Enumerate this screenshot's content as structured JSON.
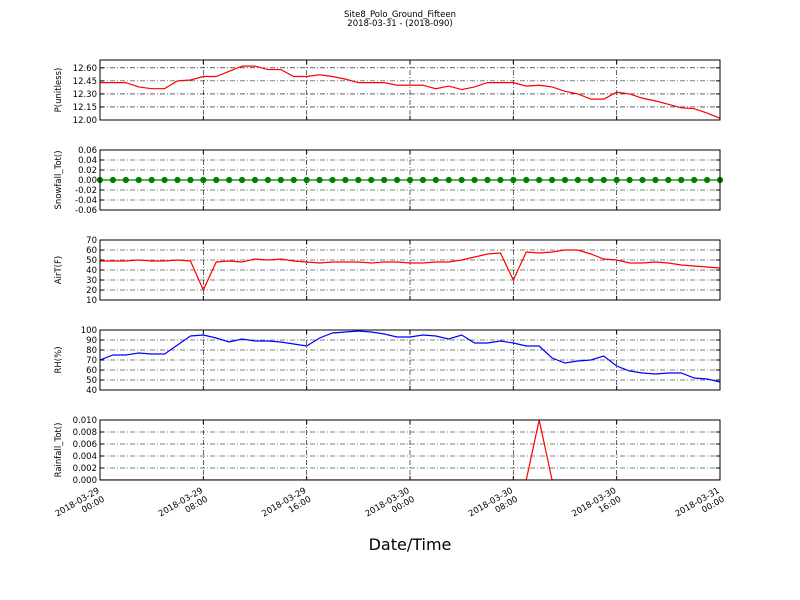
{
  "title": "Site8_Polo_Ground_Fifteen",
  "subtitle": "2018-03-31 - (2018-090)",
  "x_axis": {
    "label": "Date/Time",
    "xlim": [
      "2018-03-29 00:00",
      "2018-03-31 00:00"
    ],
    "xticks": [
      "2018-03-29 00:00",
      "2018-03-29 08:00",
      "2018-03-29 16:00",
      "2018-03-30 00:00",
      "2018-03-30 08:00",
      "2018-03-30 16:00",
      "2018-03-31 00:00"
    ],
    "grid": true,
    "x": [
      "2018-03-29 00:00",
      "2018-03-29 01:00",
      "2018-03-29 02:00",
      "2018-03-29 03:00",
      "2018-03-29 04:00",
      "2018-03-29 05:00",
      "2018-03-29 06:00",
      "2018-03-29 07:00",
      "2018-03-29 08:00",
      "2018-03-29 09:00",
      "2018-03-29 10:00",
      "2018-03-29 11:00",
      "2018-03-29 12:00",
      "2018-03-29 13:00",
      "2018-03-29 14:00",
      "2018-03-29 15:00",
      "2018-03-29 16:00",
      "2018-03-29 17:00",
      "2018-03-29 18:00",
      "2018-03-29 19:00",
      "2018-03-29 20:00",
      "2018-03-29 21:00",
      "2018-03-29 22:00",
      "2018-03-29 23:00",
      "2018-03-30 00:00",
      "2018-03-30 01:00",
      "2018-03-30 02:00",
      "2018-03-30 03:00",
      "2018-03-30 04:00",
      "2018-03-30 05:00",
      "2018-03-30 06:00",
      "2018-03-30 07:00",
      "2018-03-30 08:00",
      "2018-03-30 09:00",
      "2018-03-30 10:00",
      "2018-03-30 11:00",
      "2018-03-30 12:00",
      "2018-03-30 13:00",
      "2018-03-30 14:00",
      "2018-03-30 15:00",
      "2018-03-30 16:00",
      "2018-03-30 17:00",
      "2018-03-30 18:00",
      "2018-03-30 19:00",
      "2018-03-30 20:00",
      "2018-03-30 21:00",
      "2018-03-30 22:00",
      "2018-03-30 23:00",
      "2018-03-31 00:00"
    ]
  },
  "chart_data": [
    {
      "type": "line",
      "ylabel": "P(unitless)",
      "ylim": [
        12.0,
        12.69
      ],
      "grid": true,
      "yticks": [
        {
          "value": 12,
          "label": "12.00"
        },
        12.15,
        {
          "value": 12.3,
          "label": "12.30"
        },
        12.45,
        {
          "value": 12.6,
          "label": "12.60"
        }
      ],
      "series": [
        {
          "color": "#ff0000",
          "markers": false,
          "values": [
            12.43,
            12.43,
            12.43,
            12.38,
            12.36,
            12.36,
            12.45,
            12.46,
            12.5,
            12.5,
            12.56,
            12.62,
            12.62,
            12.58,
            12.58,
            12.5,
            12.5,
            12.52,
            12.5,
            12.47,
            12.43,
            12.43,
            12.43,
            12.4,
            12.4,
            12.4,
            12.36,
            12.39,
            12.35,
            12.38,
            12.43,
            12.43,
            12.43,
            12.39,
            12.4,
            12.38,
            12.33,
            12.3,
            12.24,
            12.24,
            12.32,
            12.3,
            12.25,
            12.22,
            12.18,
            12.14,
            12.13,
            12.08,
            12.02
          ]
        }
      ]
    },
    {
      "type": "line",
      "ylabel": "Snowfall_Tot()",
      "ylim": [
        -0.06,
        0.06
      ],
      "grid": true,
      "yticks": [
        -0.06,
        -0.04,
        -0.02,
        {
          "value": 0,
          "label": "0.00"
        },
        0.02,
        0.04,
        0.06
      ],
      "series": [
        {
          "color": "#008000",
          "markers": true,
          "values": [
            0,
            0,
            0,
            0,
            0,
            0,
            0,
            0,
            0,
            0,
            0,
            0,
            0,
            0,
            0,
            0,
            0,
            0,
            0,
            0,
            0,
            0,
            0,
            0,
            0,
            0,
            0,
            0,
            0,
            0,
            0,
            0,
            0,
            0,
            0,
            0,
            0,
            0,
            0,
            0,
            0,
            0,
            0,
            0,
            0,
            0,
            0,
            0,
            0
          ]
        }
      ]
    },
    {
      "type": "line",
      "ylabel": "AirT(F)",
      "ylim": [
        10,
        70
      ],
      "grid": true,
      "yticks": [
        10,
        20,
        30,
        40,
        50,
        60,
        70
      ],
      "series": [
        {
          "color": "#ff0000",
          "markers": false,
          "values": [
            49,
            49,
            49,
            50,
            49,
            49,
            50,
            49,
            20,
            48,
            49,
            48,
            51,
            50,
            51,
            49,
            48,
            47,
            48,
            48,
            48,
            47,
            48,
            48,
            47,
            47,
            48,
            48,
            50,
            53,
            56,
            57,
            30,
            58,
            57,
            58,
            60,
            60,
            56,
            51,
            50,
            47,
            47,
            48,
            47,
            45,
            44,
            43,
            42
          ]
        }
      ]
    },
    {
      "type": "line",
      "ylabel": "RH(%)",
      "ylim": [
        40,
        100
      ],
      "grid": true,
      "yticks": [
        40,
        50,
        60,
        70,
        80,
        90,
        100
      ],
      "series": [
        {
          "color": "#0000ff",
          "markers": false,
          "values": [
            70,
            75,
            75,
            77,
            76,
            76,
            85,
            94,
            95,
            92,
            88,
            91,
            89,
            89,
            88,
            86,
            84,
            92,
            97,
            98,
            99,
            98,
            96,
            93,
            93,
            95,
            94,
            91,
            95,
            87,
            87,
            89,
            87,
            84,
            84,
            72,
            67,
            69,
            70,
            74,
            64,
            59,
            57,
            56,
            57,
            57,
            52,
            51,
            48
          ]
        }
      ]
    },
    {
      "type": "line",
      "ylabel": "Rainfall_Tot()",
      "ylim": [
        0,
        0.01
      ],
      "grid": true,
      "yticks": [
        {
          "value": 0,
          "label": "0.000"
        },
        0.002,
        0.004,
        0.006,
        0.008,
        {
          "value": 0.01,
          "label": "0.010"
        }
      ],
      "series": [
        {
          "color": "#ff0000",
          "markers": false,
          "values": [
            0,
            0,
            0,
            0,
            0,
            0,
            0,
            0,
            0,
            0,
            0,
            0,
            0,
            0,
            0,
            0,
            0,
            0,
            0,
            0,
            0,
            0,
            0,
            0,
            0,
            0,
            0,
            0,
            0,
            0,
            0,
            0,
            0,
            0,
            0.01,
            0,
            0,
            0,
            0,
            0,
            0,
            0,
            0,
            0,
            0,
            0,
            0,
            0,
            0
          ]
        }
      ]
    }
  ]
}
